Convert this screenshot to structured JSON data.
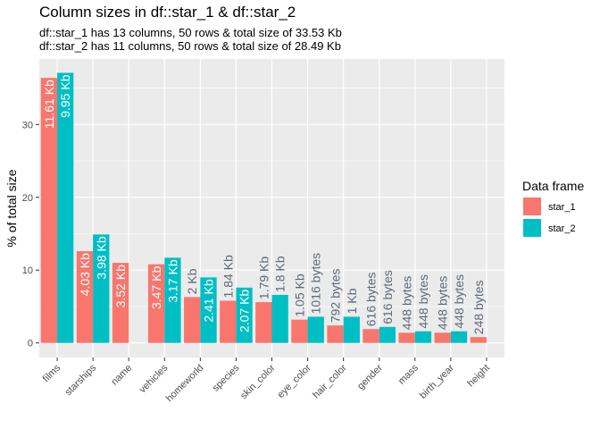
{
  "chart_data": {
    "type": "bar",
    "title": "Column sizes in df::star_1 & df::star_2",
    "subtitle": [
      "df::star_1 has 13 columns, 50 rows & total size of 33.53 Kb",
      "df::star_2 has 11 columns, 50 rows & total size of 28.49 Kb"
    ],
    "xlabel": "",
    "ylabel": "% of total size",
    "ylim": [
      -2,
      39
    ],
    "yticks": [
      0,
      10,
      20,
      30
    ],
    "legend": {
      "title": "Data frame",
      "position": "right"
    },
    "categories": [
      "films",
      "starships",
      "name",
      "vehicles",
      "homeworld",
      "species",
      "skin_color",
      "eye_color",
      "hair_color",
      "gender",
      "mass",
      "birth_year",
      "height"
    ],
    "series": [
      {
        "name": "star_1",
        "color": "#F8766D",
        "values": [
          36.4,
          12.6,
          11.0,
          10.8,
          6.3,
          5.8,
          5.6,
          3.2,
          2.4,
          1.9,
          1.4,
          1.4,
          0.8
        ],
        "labels": [
          "11.61 Kb",
          "4.03 Kb",
          "3.52 Kb",
          "3.47 Kb",
          "2 Kb",
          "1.84 Kb",
          "1.79 Kb",
          "1.05 Kb",
          "792 bytes",
          "616 bytes",
          "448 bytes",
          "448 bytes",
          "248 bytes"
        ]
      },
      {
        "name": "star_2",
        "color": "#00BFC4",
        "values": [
          37.1,
          14.9,
          null,
          11.7,
          9.0,
          7.6,
          6.6,
          3.6,
          3.6,
          2.2,
          1.6,
          1.6,
          null
        ],
        "labels": [
          "9.95 Kb",
          "3.98 Kb",
          null,
          "3.17 Kb",
          "2.41 Kb",
          "2.07 Kb",
          "1.8 Kb",
          "1016 bytes",
          "1 Kb",
          "616 bytes",
          "448 bytes",
          "448 bytes",
          null
        ]
      }
    ]
  }
}
